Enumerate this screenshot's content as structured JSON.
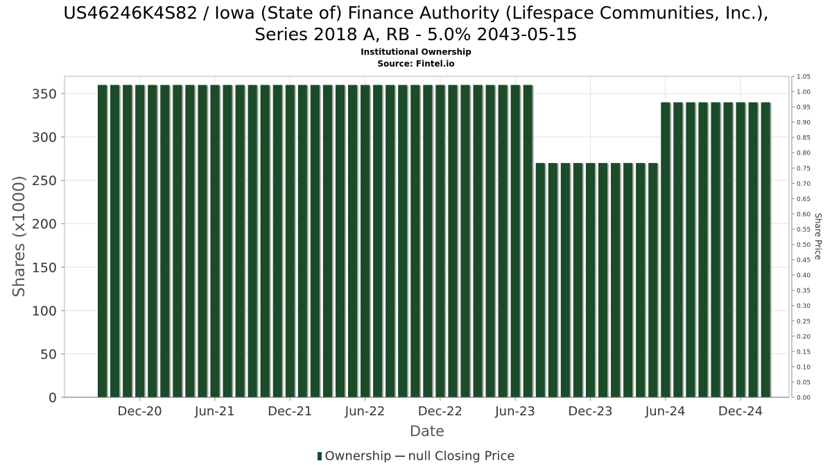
{
  "title_line1": "US46246K4S82 / Iowa (State of) Finance Authority (Lifespace Communities, Inc.),",
  "title_line2": "Series 2018 A, RB - 5.0% 2043-05-15",
  "subtitle1": "Institutional Ownership",
  "subtitle2": "Source: Fintel.io",
  "legend": {
    "ownership": "Ownership",
    "price": "null Closing Price"
  },
  "colors": {
    "bar": "#1b4b28",
    "bar_shadow": "#a9a9a9",
    "grid": "#e2e2e2"
  },
  "chart_data": {
    "type": "bar",
    "xlabel": "Date",
    "ylabel": "Shares (x1000)",
    "y2label": "Share Price",
    "ylim": [
      0,
      370
    ],
    "yticks": [
      0,
      50,
      100,
      150,
      200,
      250,
      300,
      350
    ],
    "y2lim": [
      0,
      1.05
    ],
    "y2ticks": [
      "0.00",
      "0.05",
      "0.10",
      "0.15",
      "0.20",
      "0.25",
      "0.30",
      "0.35",
      "0.40",
      "0.45",
      "0.50",
      "0.55",
      "0.60",
      "0.65",
      "0.70",
      "0.75",
      "0.80",
      "0.85",
      "0.90",
      "0.95",
      "1.00",
      "1.05"
    ],
    "xtick_labels": [
      "Dec-20",
      "Jun-21",
      "Dec-21",
      "Jun-22",
      "Dec-22",
      "Jun-23",
      "Dec-23",
      "Jun-24",
      "Dec-24"
    ],
    "xtick_positions": [
      3,
      9,
      15,
      21,
      27,
      33,
      39,
      45,
      51
    ],
    "grid": true,
    "legend_position": "bottom-center",
    "series": [
      {
        "name": "Ownership",
        "values": [
          360,
          360,
          360,
          360,
          360,
          360,
          360,
          360,
          360,
          360,
          360,
          360,
          360,
          360,
          360,
          360,
          360,
          360,
          360,
          360,
          360,
          360,
          360,
          360,
          360,
          360,
          360,
          360,
          360,
          360,
          360,
          360,
          360,
          360,
          360,
          270,
          270,
          270,
          270,
          270,
          270,
          270,
          270,
          270,
          270,
          340,
          340,
          340,
          340,
          340,
          340,
          340,
          340,
          340
        ]
      },
      {
        "name": "null Closing Price",
        "values": []
      }
    ]
  }
}
